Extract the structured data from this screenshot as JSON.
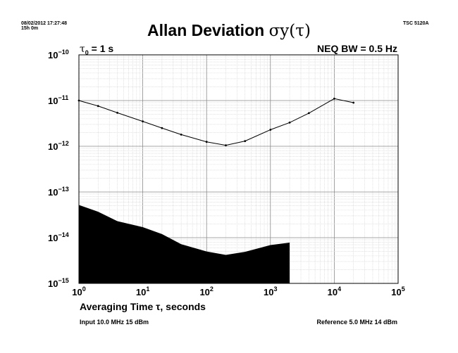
{
  "header": {
    "timestamp_date": "08/02/2012 17:27:48",
    "timestamp_duration": "15h 0m",
    "instrument": "TSC 5120A",
    "title_text": "Allan Deviation ",
    "title_symbol": "σy(τ)",
    "tau0_symbol": "τ",
    "tau0_subscript": "0",
    "tau0_value": " = 1 s",
    "neq_bw": "NEQ BW = 0.5 Hz"
  },
  "footer": {
    "input": "Input 10.0 MHz 15 dBm",
    "reference": "Reference 5.0 MHz 14 dBm"
  },
  "chart_data": {
    "type": "line",
    "title": "Allan Deviation σy(τ)",
    "xlabel": "Averaging Time τ, seconds",
    "ylabel": "",
    "xscale": "log",
    "yscale": "log",
    "xlim": [
      1,
      100000
    ],
    "ylim": [
      1e-15,
      1e-10
    ],
    "grid": true,
    "x_ticks": [
      {
        "base": "10",
        "exp": "0",
        "value": 1
      },
      {
        "base": "10",
        "exp": "1",
        "value": 10
      },
      {
        "base": "10",
        "exp": "2",
        "value": 100
      },
      {
        "base": "10",
        "exp": "3",
        "value": 1000
      },
      {
        "base": "10",
        "exp": "4",
        "value": 10000
      },
      {
        "base": "10",
        "exp": "5",
        "value": 100000
      }
    ],
    "y_ticks": [
      {
        "base": "10",
        "exp": "−10",
        "value": 1e-10
      },
      {
        "base": "10",
        "exp": "−11",
        "value": 1e-11
      },
      {
        "base": "10",
        "exp": "−12",
        "value": 1e-12
      },
      {
        "base": "10",
        "exp": "−13",
        "value": 1e-13
      },
      {
        "base": "10",
        "exp": "−14",
        "value": 1e-14
      },
      {
        "base": "10",
        "exp": "−15",
        "value": 1e-15
      }
    ],
    "series": [
      {
        "kind": "line-with-markers",
        "color": "#000000",
        "x": [
          1,
          2,
          4,
          10,
          20,
          40,
          100,
          200,
          400,
          1000,
          2000,
          4000,
          10000,
          20000
        ],
        "y": [
          1e-11,
          7.6e-12,
          5.4e-12,
          3.5e-12,
          2.5e-12,
          1.8e-12,
          1.25e-12,
          1.05e-12,
          1.3e-12,
          2.3e-12,
          3.3e-12,
          5.3e-12,
          1.1e-11,
          9e-12
        ]
      },
      {
        "kind": "filled-noise-floor",
        "color": "#000000",
        "x": [
          1,
          2,
          4,
          10,
          20,
          40,
          100,
          200,
          400,
          1000,
          2000
        ],
        "y": [
          5.2e-14,
          3.7e-14,
          2.3e-14,
          1.7e-14,
          1.2e-14,
          7.2e-15,
          5e-15,
          4.2e-15,
          4.9e-15,
          6.9e-15,
          7.8e-15
        ]
      }
    ]
  }
}
